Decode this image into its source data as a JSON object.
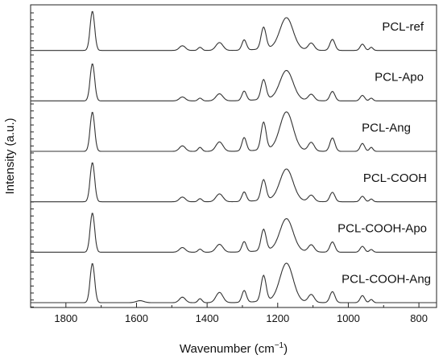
{
  "chart_data": {
    "type": "line",
    "xlabel_main": "Wavenumber (cm",
    "xlabel_sup": "−1",
    "xlabel_end": ")",
    "ylabel": "Intensity (a.u.)",
    "xlim": [
      1900,
      750
    ],
    "x_reversed": true,
    "x_ticks": [
      1800,
      1600,
      1400,
      1200,
      1000,
      800
    ],
    "x_tick_labels": [
      "1800",
      "1600",
      "1400",
      "1200",
      "1000",
      "800"
    ],
    "grid": false,
    "stacked": true,
    "series": [
      {
        "name": "PCL-ref",
        "peaks": [
          [
            1725,
            1.0
          ],
          [
            1470,
            0.12
          ],
          [
            1420,
            0.08
          ],
          [
            1365,
            0.2
          ],
          [
            1295,
            0.26
          ],
          [
            1240,
            0.55
          ],
          [
            1175,
            0.78
          ],
          [
            1105,
            0.18
          ],
          [
            1045,
            0.28
          ],
          [
            960,
            0.16
          ],
          [
            935,
            0.08
          ]
        ]
      },
      {
        "name": "PCL-Apo",
        "peaks": [
          [
            1725,
            0.95
          ],
          [
            1470,
            0.1
          ],
          [
            1420,
            0.07
          ],
          [
            1365,
            0.18
          ],
          [
            1295,
            0.24
          ],
          [
            1240,
            0.5
          ],
          [
            1175,
            0.72
          ],
          [
            1105,
            0.16
          ],
          [
            1045,
            0.24
          ],
          [
            960,
            0.14
          ],
          [
            935,
            0.07
          ]
        ]
      },
      {
        "name": "PCL-Ang",
        "peaks": [
          [
            1725,
            1.0
          ],
          [
            1470,
            0.14
          ],
          [
            1420,
            0.1
          ],
          [
            1365,
            0.24
          ],
          [
            1295,
            0.34
          ],
          [
            1240,
            0.7
          ],
          [
            1175,
            0.95
          ],
          [
            1105,
            0.22
          ],
          [
            1045,
            0.34
          ],
          [
            960,
            0.2
          ],
          [
            935,
            0.1
          ]
        ]
      },
      {
        "name": "PCL-COOH",
        "peaks": [
          [
            1725,
            1.0
          ],
          [
            1470,
            0.12
          ],
          [
            1420,
            0.08
          ],
          [
            1365,
            0.2
          ],
          [
            1295,
            0.24
          ],
          [
            1240,
            0.52
          ],
          [
            1175,
            0.78
          ],
          [
            1105,
            0.16
          ],
          [
            1045,
            0.24
          ],
          [
            960,
            0.14
          ],
          [
            935,
            0.07
          ]
        ]
      },
      {
        "name": "PCL-COOH-Apo",
        "peaks": [
          [
            1725,
            1.0
          ],
          [
            1470,
            0.12
          ],
          [
            1420,
            0.08
          ],
          [
            1365,
            0.2
          ],
          [
            1295,
            0.26
          ],
          [
            1240,
            0.54
          ],
          [
            1175,
            0.8
          ],
          [
            1105,
            0.18
          ],
          [
            1045,
            0.26
          ],
          [
            960,
            0.15
          ],
          [
            935,
            0.07
          ]
        ]
      },
      {
        "name": "PCL-COOH-Ang",
        "peaks": [
          [
            1725,
            1.0
          ],
          [
            1590,
            0.05
          ],
          [
            1470,
            0.14
          ],
          [
            1420,
            0.1
          ],
          [
            1365,
            0.26
          ],
          [
            1295,
            0.3
          ],
          [
            1240,
            0.65
          ],
          [
            1175,
            0.95
          ],
          [
            1105,
            0.2
          ],
          [
            1045,
            0.28
          ],
          [
            960,
            0.18
          ],
          [
            935,
            0.08
          ]
        ]
      }
    ],
    "line_color": "#333333"
  }
}
